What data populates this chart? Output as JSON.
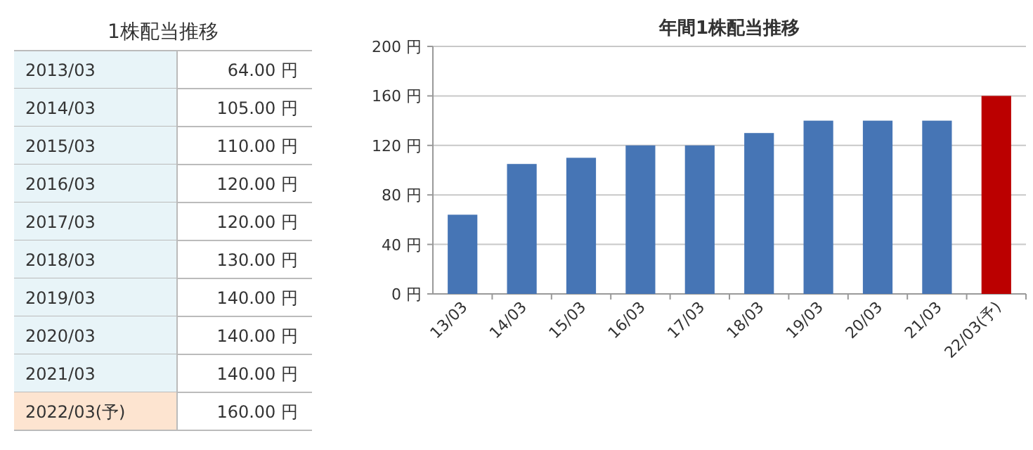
{
  "chart_data": [
    {
      "type": "other",
      "title": "1株配当推移",
      "categories": [
        "2013/03",
        "2014/03",
        "2015/03",
        "2016/03",
        "2017/03",
        "2018/03",
        "2019/03",
        "2020/03",
        "2021/03",
        "2022/03(予)"
      ],
      "value_labels": [
        "64.00 円",
        "105.00 円",
        "110.00 円",
        "120.00 円",
        "120.00 円",
        "130.00 円",
        "140.00 円",
        "140.00 円",
        "140.00 円",
        "160.00 円"
      ],
      "colors": [
        "#e8f4f8",
        "#e8f4f8",
        "#e8f4f8",
        "#e8f4f8",
        "#e8f4f8",
        "#e8f4f8",
        "#e8f4f8",
        "#e8f4f8",
        "#e8f4f8",
        "#fde4d0"
      ]
    },
    {
      "type": "bar",
      "title": "年間1株配当推移",
      "categories": [
        "13/03",
        "14/03",
        "15/03",
        "16/03",
        "17/03",
        "18/03",
        "19/03",
        "20/03",
        "21/03",
        "22/03(予)"
      ],
      "values": [
        64,
        105,
        110,
        120,
        120,
        130,
        140,
        140,
        140,
        160
      ],
      "colors": [
        "#4675b5",
        "#4675b5",
        "#4675b5",
        "#4675b5",
        "#4675b5",
        "#4675b5",
        "#4675b5",
        "#4675b5",
        "#4675b5",
        "#bb0000"
      ],
      "ylim": [
        0,
        200
      ],
      "yticks": [
        {
          "value": 0,
          "label": "0 円"
        },
        {
          "value": 40,
          "label": "40 円"
        },
        {
          "value": 80,
          "label": "80 円"
        },
        {
          "value": 120,
          "label": "120 円"
        },
        {
          "value": 160,
          "label": "160 円"
        },
        {
          "value": 200,
          "label": "200 円"
        }
      ],
      "grid": "y"
    }
  ]
}
